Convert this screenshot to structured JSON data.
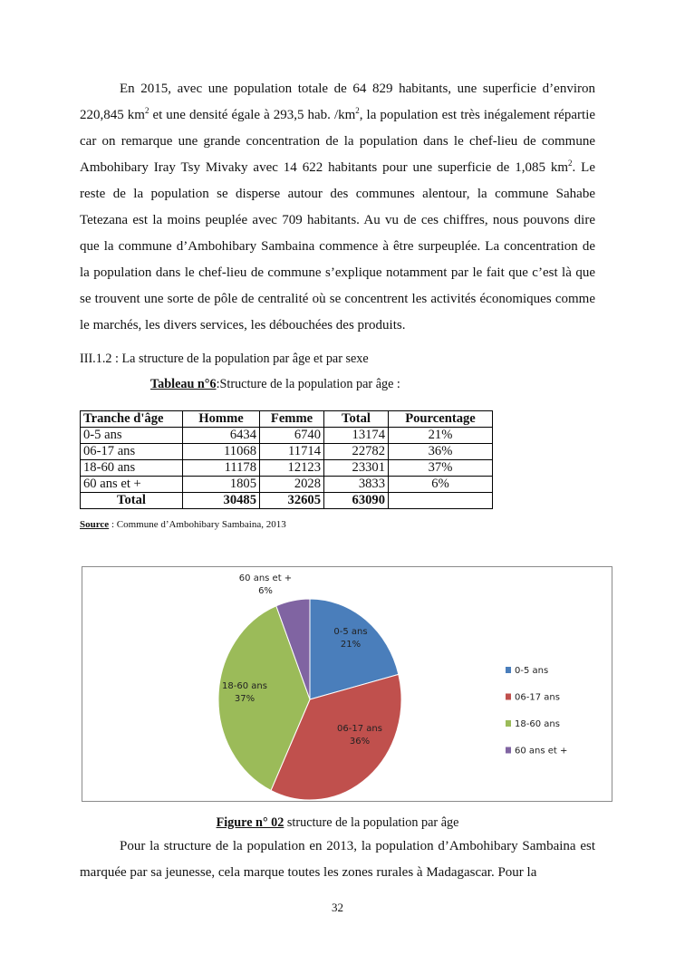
{
  "paragraph1": {
    "lines": [
      "En 2015, avec une population totale de 64 829 habitants,  une superficie d’environ",
      "220,845 km",
      "2",
      " et une  densité égale à 293,5 hab. /km",
      "2",
      ", la population est très inégalement répartie car on remarque une grande concentration de la population dans le chef-lieu de commune Ambohibary Iray Tsy Mivaky avec 14 622 habitants pour une superficie de 1,085 km",
      "2",
      ". Le reste de la population se disperse autour des communes alentour, la commune Sahabe Tetezana est la moins peuplée avec 709 habitants. Au vu de ces chiffres, nous pouvons dire que la commune d’Ambohibary Sambaina commence à être surpeuplée. La concentration de la population dans le chef-lieu de commune s’explique notamment par le fait que c’est là que se trouvent une sorte de pôle de centralité où se concentrent les activités économiques comme le marchés, les divers services, les débouchées des produits."
    ]
  },
  "section_heading": "III.1.2 : La structure de la population par âge et par sexe",
  "table_caption": {
    "label": "Tableau n°6",
    "text": ":Structure de la population par âge :"
  },
  "table": {
    "headers": [
      "Tranche d'âge",
      "Homme",
      "Femme",
      "Total",
      "Pourcentage"
    ],
    "rows": [
      [
        "0-5 ans",
        "6434",
        "6740",
        "13174",
        "21%"
      ],
      [
        "06-17 ans",
        "11068",
        "11714",
        "22782",
        "36%"
      ],
      [
        "18-60 ans",
        "11178",
        "12123",
        "23301",
        "37%"
      ],
      [
        "60 ans et +",
        "1805",
        "2028",
        "3833",
        "6%"
      ]
    ],
    "total": [
      "Total",
      "30485",
      "32605",
      "63090",
      ""
    ]
  },
  "source": {
    "label": "Source",
    "text": " : Commune d’Ambohibary Sambaina, 2013"
  },
  "chart_data": {
    "type": "pie",
    "categories": [
      "0-5 ans",
      "06-17 ans",
      "18-60 ans",
      "60 ans et +"
    ],
    "values": [
      21,
      36,
      37,
      6
    ],
    "data_labels": [
      "21%",
      "36%",
      "37%",
      "6%"
    ],
    "colors": [
      "#4a7ebb",
      "#c0504d",
      "#9bbb59",
      "#8064a2"
    ],
    "legend_position": "right",
    "start": "top, clockwise"
  },
  "figure_caption": {
    "label": "Figure n° 02",
    "text": " structure de la population par âge"
  },
  "paragraph2": "Pour la structure de la population en 2013, la population d’Ambohibary Sambaina est marquée par sa jeunesse, cela marque toutes les zones rurales à Madagascar. Pour la",
  "page_number": "32"
}
